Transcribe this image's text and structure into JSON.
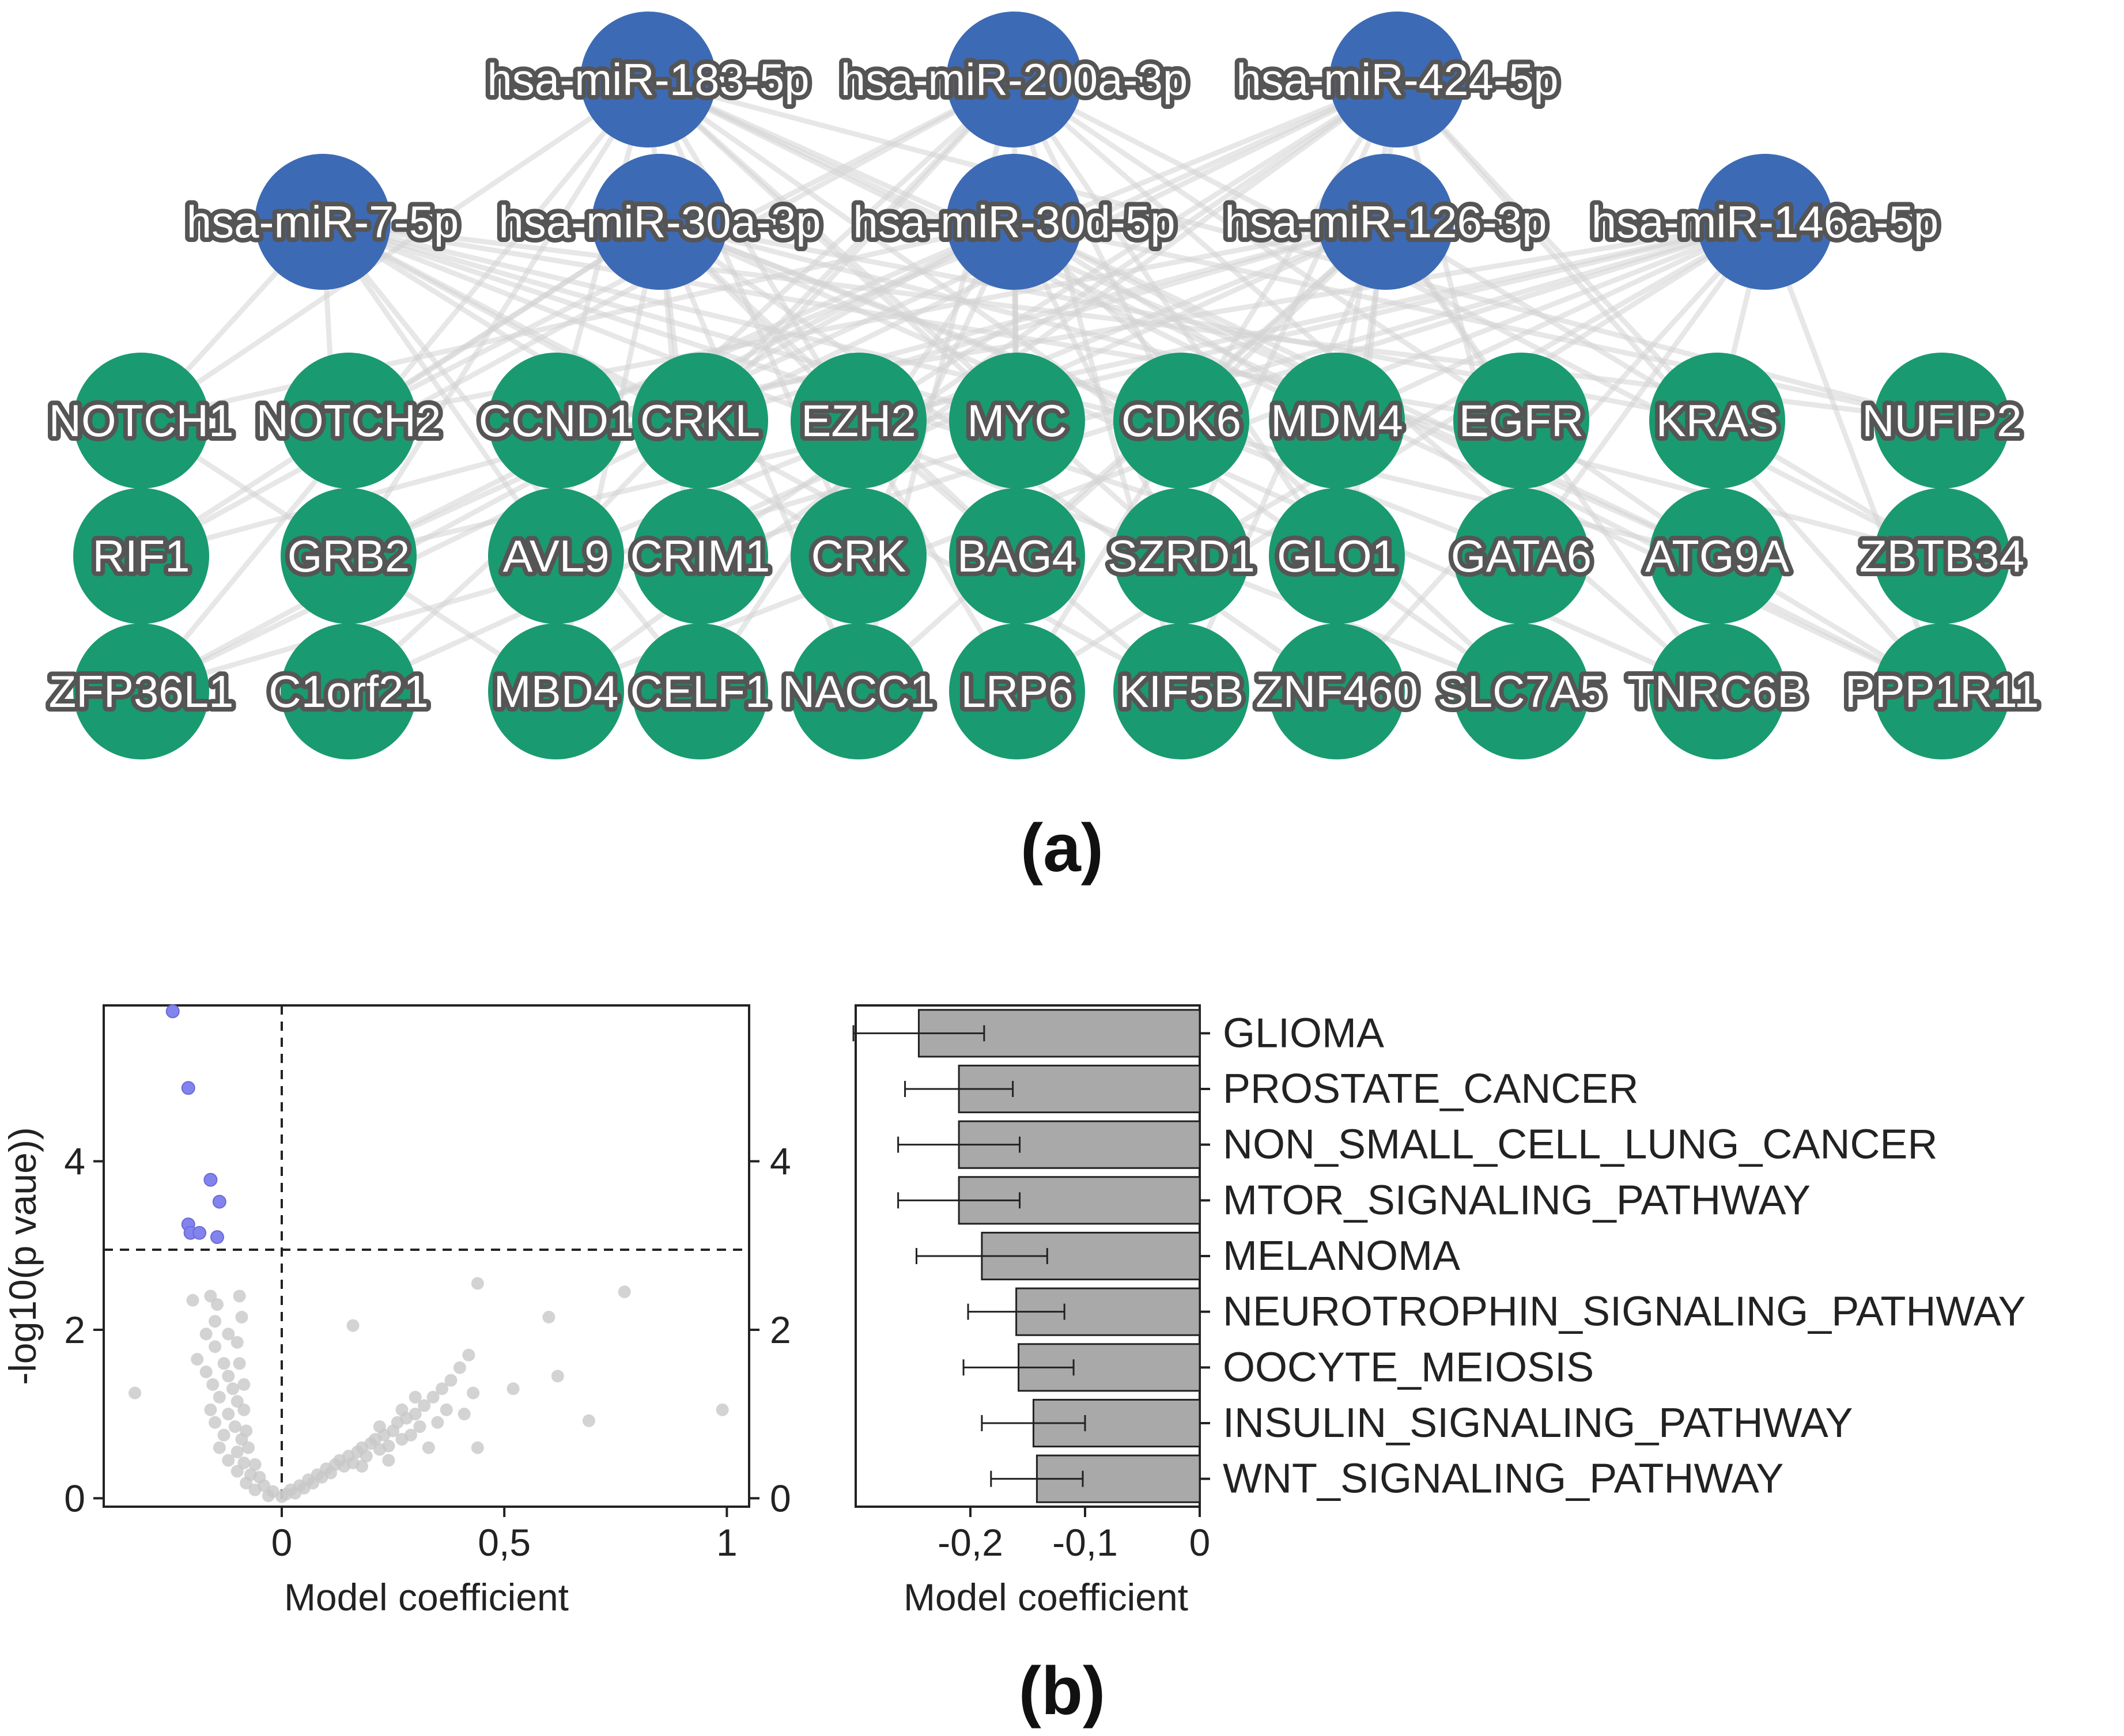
{
  "colors": {
    "mirna_node": "#3d6ab5",
    "gene_node": "#1a9a70",
    "edge": "#d4d4d4",
    "significant_point": "#8383ee",
    "nonsignificant_point": "#c8c8c8",
    "bar": "#a9a9a9"
  },
  "network": {
    "panel_label": "(a)",
    "mirnas_row1": [
      "hsa-miR-183-5p",
      "hsa-miR-200a-3p",
      "hsa-miR-424-5p"
    ],
    "mirnas_row2": [
      "hsa-miR-7-5p",
      "hsa-miR-30a-3p",
      "hsa-miR-30d-5p",
      "hsa-miR-126-3p",
      "hsa-miR-146a-5p"
    ],
    "genes_row1": [
      "NOTCH1",
      "NOTCH2",
      "CCND1",
      "CRKL",
      "EZH2",
      "MYC",
      "CDK6",
      "MDM4",
      "EGFR",
      "KRAS",
      "NUFIP2"
    ],
    "genes_row2": [
      "RIF1",
      "GRB2",
      "AVL9",
      "CRIM1",
      "CRK",
      "BAG4",
      "SZRD1",
      "GLO1",
      "GATA6",
      "ATG9A",
      "ZBTB34"
    ],
    "genes_row3": [
      "ZFP36L1",
      "C1orf21",
      "MBD4",
      "CELF1",
      "NACC1",
      "LRP6",
      "KIF5B",
      "ZNF460",
      "SLC7A5",
      "TNRC6B",
      "PPP1R11"
    ]
  },
  "panel_b_label": "(b)",
  "chart_data": [
    {
      "type": "scatter",
      "xlabel": "Model coefficient",
      "ylabel": "-log10(p vaue))",
      "xlim": [
        -0.4,
        1.05
      ],
      "ylim": [
        -0.1,
        5.85
      ],
      "x_ticks": [
        0,
        0.5,
        1
      ],
      "x_tick_labels": [
        "0",
        "0,5",
        "1"
      ],
      "y_ticks": [
        0,
        2,
        4
      ],
      "y_tick_labels": [
        "0",
        "2",
        "4"
      ],
      "right_y_ticks": [
        0,
        2,
        4
      ],
      "right_y_tick_labels": [
        "0",
        "2",
        "4"
      ],
      "reference_lines": {
        "vertical_x": 0,
        "horizontal_y": 2.95
      },
      "significant_points": [
        {
          "x": -0.245,
          "y": 5.78
        },
        {
          "x": -0.21,
          "y": 4.87
        },
        {
          "x": -0.16,
          "y": 3.78
        },
        {
          "x": -0.14,
          "y": 3.52
        },
        {
          "x": -0.21,
          "y": 3.25
        },
        {
          "x": -0.205,
          "y": 3.15
        },
        {
          "x": -0.185,
          "y": 3.15
        },
        {
          "x": -0.145,
          "y": 3.1
        }
      ],
      "nonsignificant_points": [
        {
          "x": -0.33,
          "y": 1.25
        },
        {
          "x": -0.2,
          "y": 2.35
        },
        {
          "x": -0.16,
          "y": 2.4
        },
        {
          "x": -0.145,
          "y": 2.3
        },
        {
          "x": -0.095,
          "y": 2.4
        },
        {
          "x": -0.15,
          "y": 2.1
        },
        {
          "x": -0.09,
          "y": 2.15
        },
        {
          "x": -0.17,
          "y": 1.95
        },
        {
          "x": -0.12,
          "y": 1.95
        },
        {
          "x": -0.15,
          "y": 1.8
        },
        {
          "x": -0.1,
          "y": 1.85
        },
        {
          "x": -0.19,
          "y": 1.65
        },
        {
          "x": -0.13,
          "y": 1.6
        },
        {
          "x": -0.095,
          "y": 1.6
        },
        {
          "x": -0.17,
          "y": 1.5
        },
        {
          "x": -0.12,
          "y": 1.45
        },
        {
          "x": -0.155,
          "y": 1.35
        },
        {
          "x": -0.11,
          "y": 1.3
        },
        {
          "x": -0.085,
          "y": 1.35
        },
        {
          "x": -0.14,
          "y": 1.2
        },
        {
          "x": -0.1,
          "y": 1.15
        },
        {
          "x": -0.16,
          "y": 1.05
        },
        {
          "x": -0.12,
          "y": 1.0
        },
        {
          "x": -0.085,
          "y": 1.05
        },
        {
          "x": -0.15,
          "y": 0.9
        },
        {
          "x": -0.105,
          "y": 0.85
        },
        {
          "x": -0.08,
          "y": 0.8
        },
        {
          "x": -0.13,
          "y": 0.75
        },
        {
          "x": -0.09,
          "y": 0.7
        },
        {
          "x": -0.14,
          "y": 0.6
        },
        {
          "x": -0.1,
          "y": 0.55
        },
        {
          "x": -0.075,
          "y": 0.6
        },
        {
          "x": -0.12,
          "y": 0.45
        },
        {
          "x": -0.085,
          "y": 0.42
        },
        {
          "x": -0.06,
          "y": 0.4
        },
        {
          "x": -0.1,
          "y": 0.32
        },
        {
          "x": -0.07,
          "y": 0.28
        },
        {
          "x": -0.05,
          "y": 0.25
        },
        {
          "x": -0.08,
          "y": 0.18
        },
        {
          "x": -0.04,
          "y": 0.15
        },
        {
          "x": -0.06,
          "y": 0.1
        },
        {
          "x": -0.02,
          "y": 0.08
        },
        {
          "x": -0.03,
          "y": 0.03
        },
        {
          "x": 0.0,
          "y": 0.02
        },
        {
          "x": 0.01,
          "y": 0.05
        },
        {
          "x": 0.02,
          "y": 0.1
        },
        {
          "x": 0.03,
          "y": 0.06
        },
        {
          "x": 0.04,
          "y": 0.15
        },
        {
          "x": 0.05,
          "y": 0.12
        },
        {
          "x": 0.06,
          "y": 0.22
        },
        {
          "x": 0.07,
          "y": 0.18
        },
        {
          "x": 0.08,
          "y": 0.28
        },
        {
          "x": 0.09,
          "y": 0.25
        },
        {
          "x": 0.1,
          "y": 0.35
        },
        {
          "x": 0.11,
          "y": 0.3
        },
        {
          "x": 0.12,
          "y": 0.4
        },
        {
          "x": 0.13,
          "y": 0.45
        },
        {
          "x": 0.14,
          "y": 0.38
        },
        {
          "x": 0.15,
          "y": 0.5
        },
        {
          "x": 0.16,
          "y": 0.42
        },
        {
          "x": 0.17,
          "y": 0.55
        },
        {
          "x": 0.18,
          "y": 0.6
        },
        {
          "x": 0.19,
          "y": 0.5
        },
        {
          "x": 0.2,
          "y": 0.65
        },
        {
          "x": 0.21,
          "y": 0.7
        },
        {
          "x": 0.22,
          "y": 0.58
        },
        {
          "x": 0.23,
          "y": 0.75
        },
        {
          "x": 0.24,
          "y": 0.62
        },
        {
          "x": 0.25,
          "y": 0.8
        },
        {
          "x": 0.26,
          "y": 0.9
        },
        {
          "x": 0.27,
          "y": 0.7
        },
        {
          "x": 0.28,
          "y": 0.95
        },
        {
          "x": 0.29,
          "y": 0.75
        },
        {
          "x": 0.3,
          "y": 1.0
        },
        {
          "x": 0.31,
          "y": 0.85
        },
        {
          "x": 0.32,
          "y": 1.1
        },
        {
          "x": 0.34,
          "y": 1.2
        },
        {
          "x": 0.35,
          "y": 0.9
        },
        {
          "x": 0.36,
          "y": 1.3
        },
        {
          "x": 0.38,
          "y": 1.4
        },
        {
          "x": 0.4,
          "y": 1.55
        },
        {
          "x": 0.41,
          "y": 1.0
        },
        {
          "x": 0.42,
          "y": 1.7
        },
        {
          "x": 0.43,
          "y": 1.25
        },
        {
          "x": 0.44,
          "y": 0.6
        },
        {
          "x": 0.44,
          "y": 2.55
        },
        {
          "x": 0.16,
          "y": 2.05
        },
        {
          "x": 0.3,
          "y": 1.2
        },
        {
          "x": 0.52,
          "y": 1.3
        },
        {
          "x": 0.6,
          "y": 2.15
        },
        {
          "x": 0.62,
          "y": 1.45
        },
        {
          "x": 0.69,
          "y": 0.92
        },
        {
          "x": 0.77,
          "y": 2.45
        },
        {
          "x": 0.99,
          "y": 1.05
        },
        {
          "x": 0.37,
          "y": 1.05
        },
        {
          "x": 0.33,
          "y": 0.6
        },
        {
          "x": 0.27,
          "y": 1.05
        },
        {
          "x": 0.24,
          "y": 0.45
        },
        {
          "x": 0.22,
          "y": 0.85
        },
        {
          "x": 0.18,
          "y": 0.38
        }
      ]
    },
    {
      "type": "bar",
      "orientation": "horizontal",
      "xlabel": "Model coefficient",
      "xlim": [
        -0.3,
        0
      ],
      "x_ticks": [
        -0.2,
        -0.1,
        0
      ],
      "x_tick_labels": [
        "-0,2",
        "-0,1",
        "0"
      ],
      "categories": [
        "GLIOMA",
        "PROSTATE_CANCER",
        "NON_SMALL_CELL_LUNG_CANCER",
        "MTOR_SIGNALING_PATHWAY",
        "MELANOMA",
        "NEUROTROPHIN_SIGNALING_PATHWAY",
        "OOCYTE_MEIOSIS",
        "INSULIN_SIGNALING_PATHWAY",
        "WNT_SIGNALING_PATHWAY"
      ],
      "values": [
        -0.245,
        -0.21,
        -0.21,
        -0.21,
        -0.19,
        -0.16,
        -0.158,
        -0.145,
        -0.142
      ],
      "error": [
        0.057,
        0.047,
        0.053,
        0.053,
        0.057,
        0.042,
        0.048,
        0.045,
        0.04
      ]
    }
  ]
}
